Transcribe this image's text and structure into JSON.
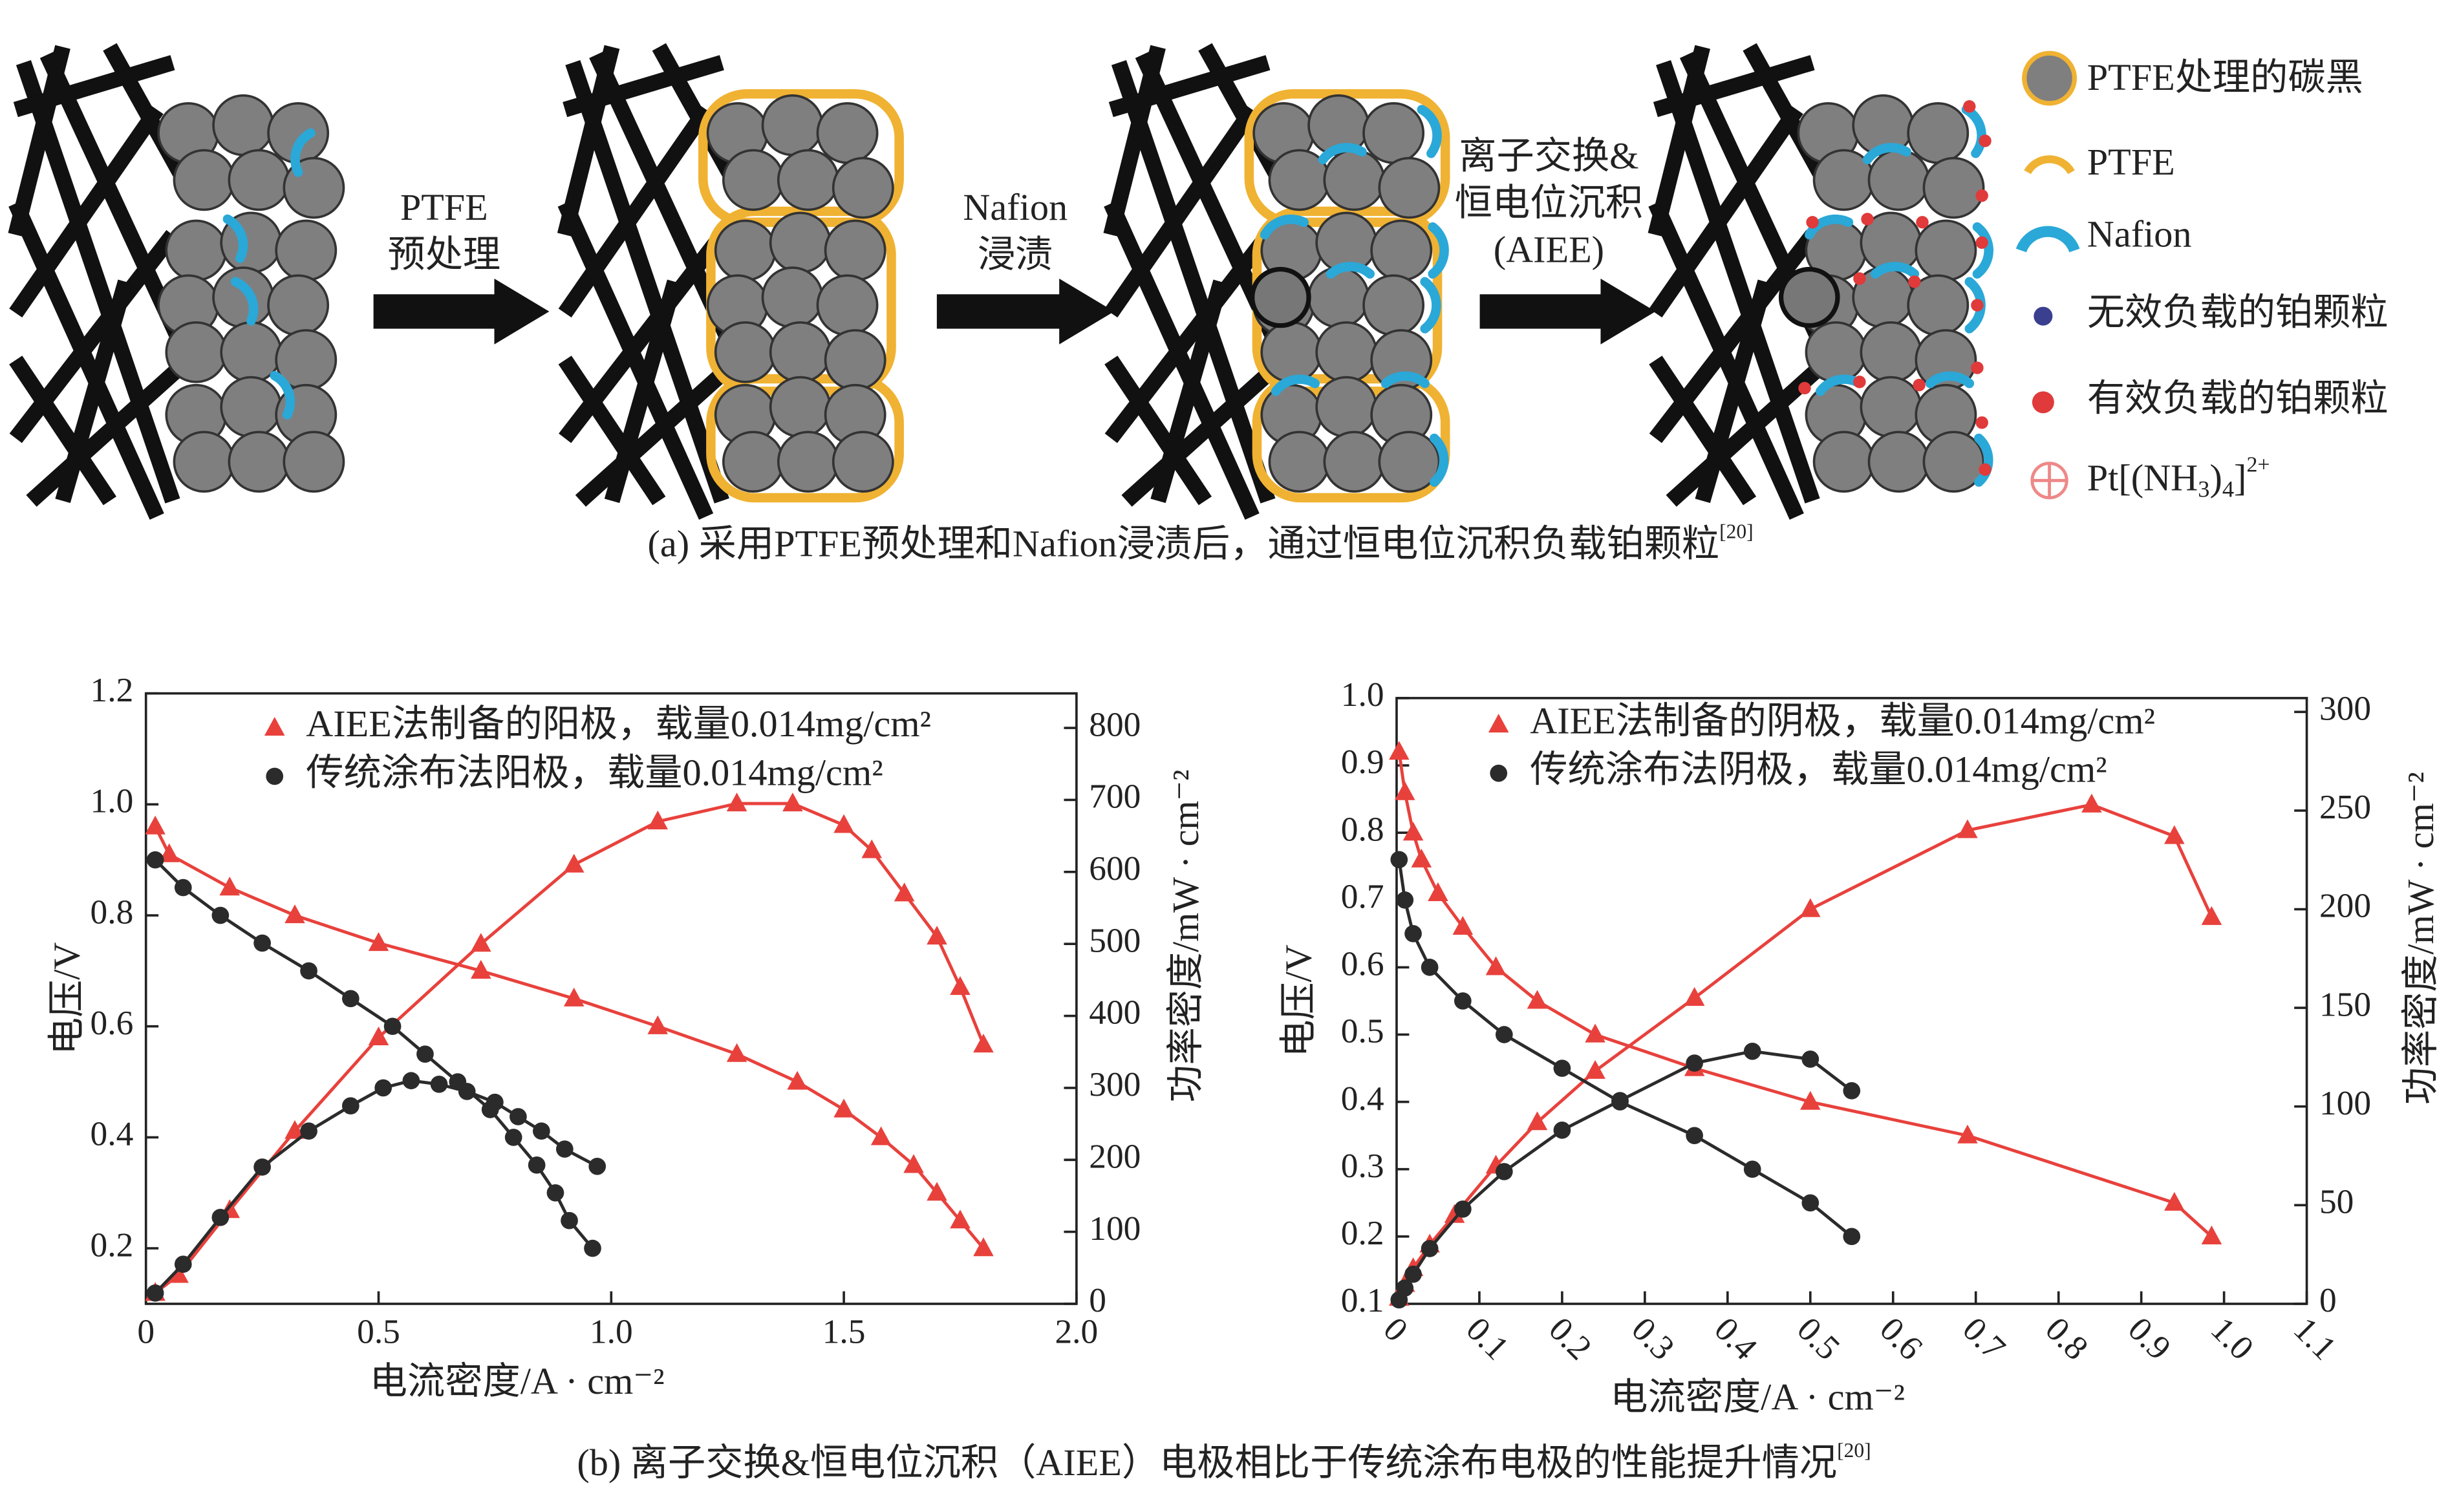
{
  "diagram": {
    "steps": [
      [
        "PTFE",
        "预处理"
      ],
      [
        "Nafion",
        "浸渍"
      ],
      [
        "离子交换&",
        "恒电位沉积",
        "(AIEE)"
      ]
    ],
    "legend": [
      "PTFE处理的碳黑",
      "PTFE",
      "Nafion",
      "无效负载的铂颗粒",
      "有效负载的铂颗粒"
    ],
    "legend_formula": [
      "Pt[(NH",
      "3",
      ")",
      "4",
      "]",
      "2+"
    ],
    "caption": "(a) 采用PTFE预处理和Nafion浸渍后，通过恒电位沉积负载铂颗粒",
    "caption_ref": "[20]"
  },
  "chart_data": [
    {
      "type": "line",
      "x_label": "电流密度/A · cm⁻²",
      "y_label": "电压/V",
      "y2_label": "功率密度/mW · cm⁻²",
      "xlim": [
        0,
        2.0
      ],
      "xticks": [
        0,
        0.5,
        {
          "value": 1,
          "label": "1.0"
        },
        1.5,
        {
          "value": 2,
          "label": "2.0"
        }
      ],
      "ylim": [
        0.1,
        1.2
      ],
      "yticks": [
        0.2,
        0.4,
        0.6,
        0.8,
        {
          "value": 1,
          "label": "1.0"
        },
        1.2
      ],
      "y2lim": [
        0,
        848
      ],
      "y2ticks": [
        0,
        100,
        200,
        300,
        400,
        500,
        600,
        700,
        800
      ],
      "series": [
        {
          "name": "AIEE法制备的阳极，载量0.014mg/cm²",
          "color": "#e8413c",
          "marker": "triangle",
          "curves": [
            {
              "axis": "y",
              "x": [
                0.02,
                0.05,
                0.18,
                0.32,
                0.5,
                0.72,
                0.92,
                1.1,
                1.27,
                1.4,
                1.5,
                1.58,
                1.65,
                1.7,
                1.75,
                1.8
              ],
              "values": [
                0.96,
                0.91,
                0.85,
                0.8,
                0.75,
                0.7,
                0.65,
                0.6,
                0.55,
                0.5,
                0.45,
                0.4,
                0.35,
                0.3,
                0.25,
                0.2
              ]
            },
            {
              "axis": "y2",
              "x": [
                0.02,
                0.07,
                0.18,
                0.32,
                0.5,
                0.72,
                0.92,
                1.1,
                1.27,
                1.39,
                1.5,
                1.56,
                1.63,
                1.7,
                1.75,
                1.8
              ],
              "values": [
                15,
                40,
                130,
                240,
                370,
                500,
                610,
                670,
                695,
                695,
                665,
                630,
                570,
                510,
                440,
                360
              ]
            }
          ]
        },
        {
          "name": "传统涂布法阳极，载量0.014mg/cm²",
          "color": "#2b2b2b",
          "marker": "circle",
          "curves": [
            {
              "axis": "y",
              "x": [
                0.02,
                0.08,
                0.16,
                0.25,
                0.35,
                0.44,
                0.53,
                0.6,
                0.67,
                0.74,
                0.79,
                0.84,
                0.88,
                0.91,
                0.96
              ],
              "values": [
                0.9,
                0.85,
                0.8,
                0.75,
                0.7,
                0.65,
                0.6,
                0.55,
                0.5,
                0.45,
                0.4,
                0.35,
                0.3,
                0.25,
                0.2
              ]
            },
            {
              "axis": "y2",
              "x": [
                0.02,
                0.08,
                0.16,
                0.25,
                0.35,
                0.44,
                0.51,
                0.57,
                0.63,
                0.69,
                0.75,
                0.8,
                0.85,
                0.9,
                0.97
              ],
              "values": [
                15,
                55,
                120,
                190,
                240,
                275,
                300,
                310,
                305,
                295,
                280,
                260,
                240,
                215,
                191
              ]
            }
          ]
        }
      ]
    },
    {
      "type": "line",
      "x_label": "电流密度/A · cm⁻²",
      "y_label": "电压/V",
      "y2_label": "功率密度/mW · cm⁻²",
      "xlim": [
        0,
        1.1
      ],
      "xticks": [
        0,
        0.1,
        0.2,
        0.3,
        0.4,
        0.5,
        0.6,
        0.7,
        0.8,
        0.9,
        {
          "value": 1,
          "label": "1.0"
        },
        1.1
      ],
      "ylim": [
        0.1,
        1.0
      ],
      "yticks": [
        0.1,
        0.2,
        0.3,
        0.4,
        0.5,
        0.6,
        0.7,
        0.8,
        0.9,
        {
          "value": 1,
          "label": "1.0"
        }
      ],
      "y2lim": [
        0,
        307
      ],
      "y2ticks": [
        0,
        50,
        100,
        150,
        200,
        250,
        300
      ],
      "series": [
        {
          "name": "AIEE法制备的阴极，载量0.014mg/cm²",
          "color": "#e8413c",
          "marker": "triangle",
          "curves": [
            {
              "axis": "y",
              "x": [
                0.003,
                0.01,
                0.02,
                0.03,
                0.05,
                0.08,
                0.12,
                0.17,
                0.24,
                0.36,
                0.5,
                0.69,
                0.94,
                0.985
              ],
              "values": [
                0.92,
                0.86,
                0.8,
                0.76,
                0.71,
                0.66,
                0.6,
                0.55,
                0.5,
                0.45,
                0.4,
                0.35,
                0.25,
                0.2
              ]
            },
            {
              "axis": "y2",
              "x": [
                0.003,
                0.01,
                0.02,
                0.04,
                0.07,
                0.12,
                0.17,
                0.24,
                0.36,
                0.5,
                0.69,
                0.84,
                0.94,
                0.985
              ],
              "values": [
                3,
                10,
                18,
                30,
                45,
                70,
                92,
                118,
                155,
                200,
                240,
                253,
                237,
                196
              ]
            }
          ]
        },
        {
          "name": "传统涂布法阴极，载量0.014mg/cm²",
          "color": "#2b2b2b",
          "marker": "circle",
          "curves": [
            {
              "axis": "y",
              "x": [
                0.003,
                0.01,
                0.02,
                0.04,
                0.08,
                0.13,
                0.2,
                0.27,
                0.36,
                0.43,
                0.5,
                0.55
              ],
              "values": [
                0.76,
                0.7,
                0.65,
                0.6,
                0.55,
                0.5,
                0.45,
                0.4,
                0.35,
                0.3,
                0.25,
                0.2
              ]
            },
            {
              "axis": "y2",
              "x": [
                0.003,
                0.01,
                0.02,
                0.04,
                0.08,
                0.13,
                0.2,
                0.27,
                0.36,
                0.43,
                0.5,
                0.55
              ],
              "values": [
                2,
                8,
                15,
                28,
                48,
                67,
                88,
                103,
                122,
                128,
                124,
                108
              ]
            }
          ]
        }
      ]
    }
  ],
  "caption_b": "(b) 离子交换&恒电位沉积（AIEE）电极相比于传统涂布电极的性能提升情况",
  "caption_b_ref": "[20]"
}
